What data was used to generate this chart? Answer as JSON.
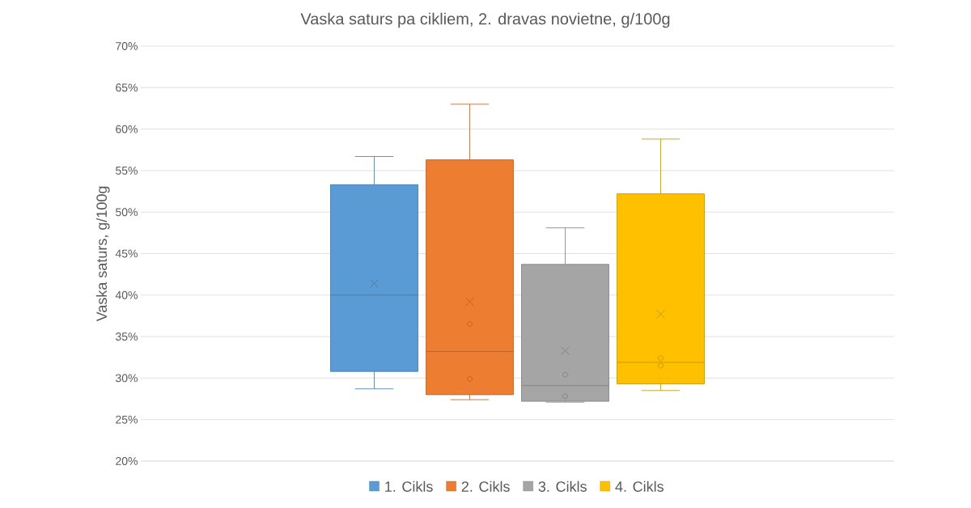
{
  "chart_data": {
    "type": "box",
    "title": "Vaska saturs pa cikliem, 2. dravas novietne, g/100g",
    "ylabel": "Vaska saturs, g/100g",
    "categories": [
      null
    ],
    "ylim": [
      20,
      70
    ],
    "yticks": [
      {
        "value": 20,
        "label": "20%"
      },
      {
        "value": 25,
        "label": "25%"
      },
      {
        "value": 30,
        "label": "30%"
      },
      {
        "value": 35,
        "label": "35%"
      },
      {
        "value": 40,
        "label": "40%"
      },
      {
        "value": 45,
        "label": "45%"
      },
      {
        "value": 50,
        "label": "50%"
      },
      {
        "value": 55,
        "label": "55%"
      },
      {
        "value": 60,
        "label": "60%"
      },
      {
        "value": 65,
        "label": "65%"
      },
      {
        "value": 70,
        "label": "70%"
      }
    ],
    "grid": "y",
    "legend": "bottom",
    "series": [
      {
        "name": "1. Cikls",
        "color": "#5b9bd5",
        "boxes": [
          {
            "low": 28.7,
            "q1": 30.8,
            "median": 40.0,
            "q3": 53.3,
            "high": 56.7,
            "mean": 41.4
          }
        ]
      },
      {
        "name": "2. Cikls",
        "color": "#ed7d31",
        "boxes": [
          {
            "low": 27.4,
            "q1": 28.0,
            "median": 33.2,
            "q3": 56.3,
            "high": 63.0,
            "mean": 39.2,
            "outliers": [
              36.5,
              29.9
            ]
          }
        ]
      },
      {
        "name": "3. Cikls",
        "color": "#a5a5a5",
        "boxes": [
          {
            "low": 27.1,
            "q1": 27.2,
            "median": 29.1,
            "q3": 43.7,
            "high": 48.1,
            "mean": 33.3,
            "outliers": [
              30.4,
              27.8
            ]
          }
        ]
      },
      {
        "name": "4. Cikls",
        "color": "#ffc000",
        "boxes": [
          {
            "low": 28.5,
            "q1": 29.3,
            "median": 31.9,
            "q3": 52.2,
            "high": 58.8,
            "mean": 37.7,
            "outliers": [
              32.4,
              31.5
            ]
          }
        ]
      }
    ]
  }
}
